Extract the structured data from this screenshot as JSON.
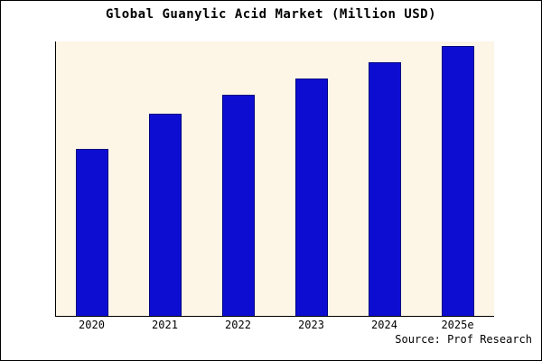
{
  "chart_data": {
    "type": "bar",
    "title": "Global Guanylic Acid Market (Million USD)",
    "categories": [
      "2020",
      "2021",
      "2022",
      "2023",
      "2024",
      "2025e"
    ],
    "values": [
      62,
      75,
      82,
      88,
      94,
      100
    ],
    "xlabel": "",
    "ylabel": "",
    "ylim": [
      0,
      102
    ],
    "grid": false,
    "legend": false,
    "bar_color": "#0d0dd2",
    "plot_background": "#FDF5E6",
    "source": "Source: Prof Research"
  }
}
